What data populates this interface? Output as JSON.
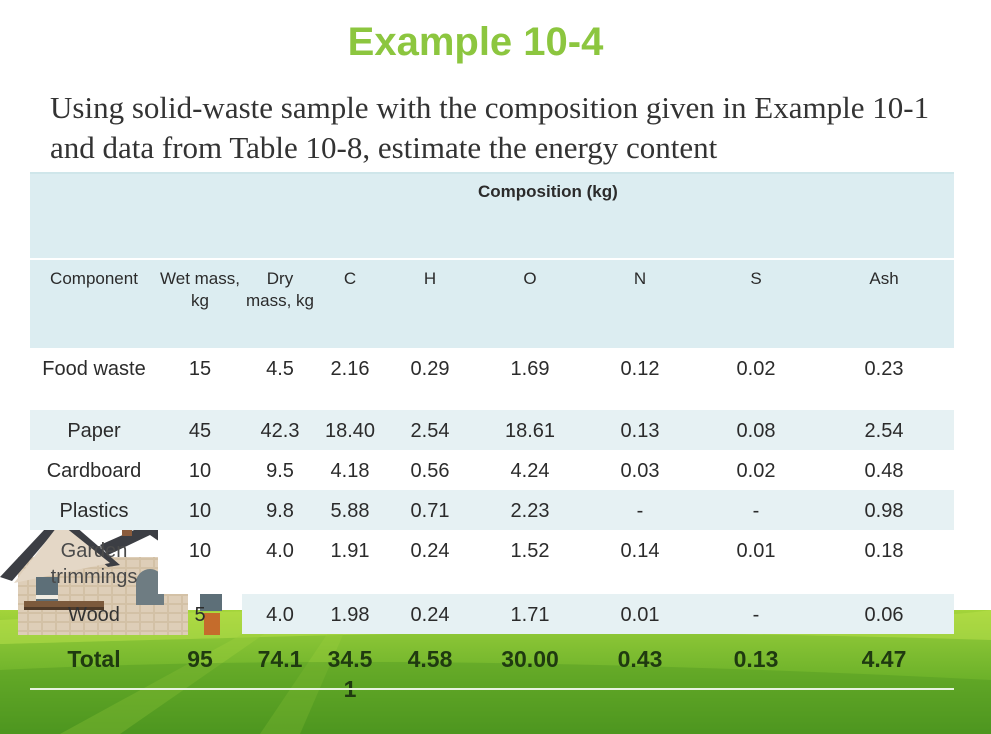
{
  "title": "Example 10-4",
  "subtitle": "Using solid-waste sample with the composition given in Example 10-1 and data from Table 10-8, estimate the energy content",
  "table": {
    "super_header": "Composition (kg)",
    "headers": [
      "Component",
      "Wet mass, kg",
      "Dry mass, kg",
      "C",
      "H",
      "O",
      "N",
      "S",
      "Ash"
    ],
    "rows": [
      [
        "Food waste",
        "15",
        "4.5",
        "2.16",
        "0.29",
        "1.69",
        "0.12",
        "0.02",
        "0.23"
      ],
      [
        "Paper",
        "45",
        "42.3",
        "18.40",
        "2.54",
        "18.61",
        "0.13",
        "0.08",
        "2.54"
      ],
      [
        "Cardboard",
        "10",
        "9.5",
        "4.18",
        "0.56",
        "4.24",
        "0.03",
        "0.02",
        "0.48"
      ],
      [
        "Plastics",
        "10",
        "9.8",
        "5.88",
        "0.71",
        "2.23",
        "-",
        "-",
        "0.98"
      ],
      [
        "Garden trimmings",
        "10",
        "4.0",
        "1.91",
        "0.24",
        "1.52",
        "0.14",
        "0.01",
        "0.18"
      ],
      [
        "Wood",
        "5",
        "4.0",
        "1.98",
        "0.24",
        "1.71",
        "0.01",
        "-",
        "0.06"
      ]
    ],
    "total": [
      "Total",
      "95",
      "74.1",
      "34.51",
      "4.58",
      "30.00",
      "0.43",
      "0.13",
      "4.47"
    ]
  },
  "colors": {
    "title": "#8cc63f",
    "table_shade": "#dcedf1",
    "grass": "#6db22a"
  }
}
